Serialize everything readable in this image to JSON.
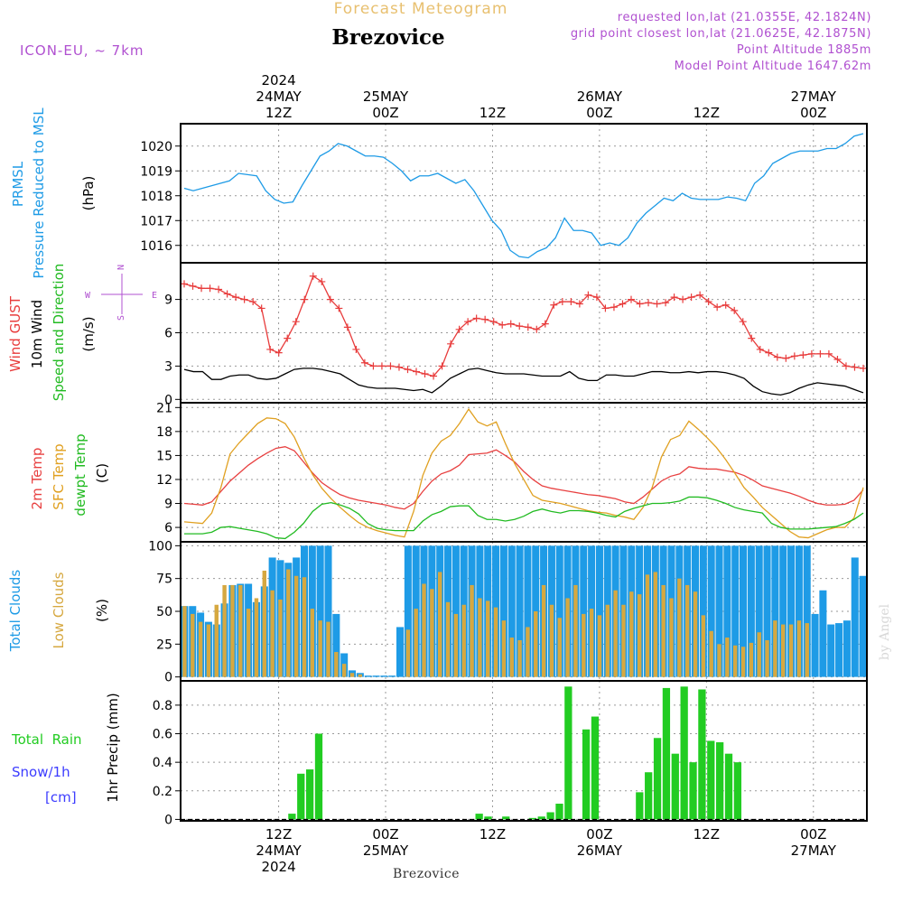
{
  "header": {
    "product": "Forecast Meteogram",
    "station": "Brezovice",
    "model": "ICON-EU, ~ 7km",
    "req_line": "requested lon,lat (21.0355E, 42.1824N)",
    "grid_line": "grid point closest lon,lat (21.0625E, 42.1875N)",
    "alt_line": "Point Altitude 1885m",
    "model_alt_line": "Model Point Altitude 1647.62m",
    "footer_station": "Brezovice",
    "watermark": "by Angel"
  },
  "time_axis": {
    "ticks": [
      {
        "hour": 18,
        "top": [
          "2024",
          "24MAY",
          "12Z"
        ],
        "bottom": [
          "12Z",
          "24MAY",
          "2024"
        ]
      },
      {
        "hour": 30,
        "top": [
          "25MAY",
          "00Z"
        ],
        "bottom": [
          "00Z",
          "25MAY"
        ]
      },
      {
        "hour": 42,
        "top": [
          "12Z"
        ],
        "bottom": [
          "12Z"
        ]
      },
      {
        "hour": 54,
        "top": [
          "26MAY",
          "00Z"
        ],
        "bottom": [
          "00Z",
          "26MAY"
        ]
      },
      {
        "hour": 66,
        "top": [
          "12Z"
        ],
        "bottom": [
          "12Z"
        ]
      },
      {
        "hour": 78,
        "top": [
          "27MAY",
          "00Z"
        ],
        "bottom": [
          "00Z",
          "27MAY"
        ]
      }
    ],
    "x_range_hours": [
      7,
      84
    ],
    "step_hours": 1
  },
  "panel_labels": {
    "pressure": {
      "name": "PRMSL",
      "desc": "Pressure Reduced to MSL",
      "unit": "(hPa)"
    },
    "wind": {
      "gust": "Wind GUST",
      "wind10": "10m Wind",
      "dir": "Speed and Direction",
      "unit": "(m/s)",
      "compass_n": "N",
      "compass_s": "S",
      "compass_w": "W",
      "compass_e": "E"
    },
    "temp": {
      "t2m": "2m Temp",
      "sfc": "SFC Temp",
      "dew": "dewpt Temp",
      "unit": "(C)"
    },
    "clouds": {
      "total": "Total Clouds",
      "low": "Low Clouds",
      "unit": "(%)"
    },
    "precip": {
      "rain": "Total  Rain",
      "snow": "Snow/1h",
      "snow_unit": "[cm]",
      "axis": "1hr Precip (mm)"
    }
  },
  "colors": {
    "pressure": "#1e9be6",
    "gust": "#e83c3c",
    "wind": "#000000",
    "t2m": "#e84040",
    "sfc": "#e0a020",
    "dew": "#22bb22",
    "total_clouds": "#1e9be6",
    "low_clouds": "#d6a840",
    "rain": "#22cc22",
    "snow": "#3c3cff",
    "header_purple": "#b050d0",
    "header_orange": "#e8b040"
  },
  "chart_data": [
    {
      "type": "line",
      "panel": "pressure",
      "ylabel": "(hPa)",
      "ylim": [
        1015.3,
        1020.9
      ],
      "yticks": [
        1016,
        1017,
        1018,
        1019,
        1020
      ],
      "grid": true,
      "series": [
        {
          "name": "PRMSL",
          "values": [
            1018.3,
            1018.2,
            1018.3,
            1018.4,
            1018.5,
            1018.6,
            1018.9,
            1018.85,
            1018.8,
            1018.2,
            1017.85,
            1017.7,
            1017.75,
            1018.4,
            1019.0,
            1019.6,
            1019.8,
            1020.1,
            1020.0,
            1019.8,
            1019.6,
            1019.6,
            1019.55,
            1019.3,
            1019.0,
            1018.6,
            1018.8,
            1018.8,
            1018.9,
            1018.7,
            1018.5,
            1018.65,
            1018.2,
            1017.6,
            1017.0,
            1016.6,
            1015.8,
            1015.55,
            1015.5,
            1015.75,
            1015.9,
            1016.3,
            1017.1,
            1016.6,
            1016.6,
            1016.5,
            1016.0,
            1016.1,
            1016.0,
            1016.3,
            1016.9,
            1017.3,
            1017.6,
            1017.9,
            1017.8,
            1018.1,
            1017.9,
            1017.85,
            1017.85,
            1017.85,
            1017.95,
            1017.9,
            1017.8,
            1018.5,
            1018.8,
            1019.3,
            1019.5,
            1019.7,
            1019.8,
            1019.8,
            1019.8,
            1019.9,
            1019.9,
            1020.1,
            1020.4,
            1020.5
          ]
        }
      ]
    },
    {
      "type": "line",
      "panel": "wind",
      "ylabel": "(m/s)",
      "ylim": [
        -0.3,
        12.3
      ],
      "yticks": [
        0,
        3,
        6,
        9
      ],
      "grid": true,
      "series": [
        {
          "name": "Wind GUST",
          "values": [
            10.4,
            10.2,
            10.0,
            10.0,
            9.9,
            9.5,
            9.2,
            9.0,
            8.8,
            8.2,
            4.5,
            4.2,
            5.5,
            7.0,
            9.0,
            11.1,
            10.6,
            9.0,
            8.2,
            6.5,
            4.5,
            3.3,
            3.0,
            3.0,
            3.0,
            2.9,
            2.7,
            2.5,
            2.3,
            2.1,
            3.0,
            5.0,
            6.3,
            7.0,
            7.3,
            7.2,
            7.0,
            6.7,
            6.8,
            6.6,
            6.5,
            6.3,
            6.8,
            8.5,
            8.8,
            8.8,
            8.6,
            9.4,
            9.2,
            8.2,
            8.3,
            8.6,
            9.0,
            8.6,
            8.7,
            8.6,
            8.7,
            9.2,
            9.0,
            9.2,
            9.4,
            8.8,
            8.3,
            8.5,
            8.0,
            7.0,
            5.5,
            4.5,
            4.2,
            3.8,
            3.7,
            3.9,
            4.0,
            4.1,
            4.1,
            4.1,
            3.6,
            3.0,
            2.9,
            2.8
          ]
        },
        {
          "name": "10m Wind",
          "values": [
            2.7,
            2.5,
            2.5,
            1.8,
            1.8,
            2.1,
            2.2,
            2.2,
            1.9,
            1.8,
            1.9,
            2.3,
            2.7,
            2.8,
            2.8,
            2.7,
            2.5,
            2.3,
            1.8,
            1.3,
            1.1,
            1.0,
            1.0,
            1.0,
            0.9,
            0.8,
            0.9,
            0.6,
            1.2,
            1.9,
            2.3,
            2.7,
            2.8,
            2.6,
            2.4,
            2.3,
            2.3,
            2.3,
            2.2,
            2.1,
            2.1,
            2.1,
            2.5,
            1.9,
            1.7,
            1.7,
            2.2,
            2.2,
            2.1,
            2.1,
            2.3,
            2.5,
            2.5,
            2.4,
            2.4,
            2.5,
            2.4,
            2.5,
            2.5,
            2.4,
            2.2,
            1.9,
            1.2,
            0.7,
            0.5,
            0.4,
            0.6,
            1.0,
            1.3,
            1.5,
            1.4,
            1.3,
            1.2,
            0.9,
            0.6
          ]
        }
      ]
    },
    {
      "type": "line",
      "panel": "temperature",
      "ylabel": "(C)",
      "ylim": [
        4.2,
        21.6
      ],
      "yticks": [
        6,
        9,
        12,
        15,
        18,
        21
      ],
      "grid": true,
      "series": [
        {
          "name": "2m Temp",
          "values": [
            9.0,
            8.9,
            8.8,
            9.2,
            10.5,
            11.8,
            12.8,
            13.8,
            14.6,
            15.3,
            15.9,
            16.1,
            15.6,
            14.2,
            12.8,
            11.6,
            10.8,
            10.1,
            9.7,
            9.4,
            9.2,
            9.0,
            8.8,
            8.5,
            8.3,
            9.0,
            10.5,
            11.8,
            12.7,
            13.1,
            13.8,
            15.1,
            15.2,
            15.3,
            15.7,
            15.0,
            14.2,
            13.0,
            12.0,
            11.2,
            10.9,
            10.7,
            10.5,
            10.3,
            10.1,
            10.0,
            9.8,
            9.6,
            9.2,
            9.0,
            9.8,
            10.8,
            11.8,
            12.4,
            12.7,
            13.6,
            13.4,
            13.3,
            13.3,
            13.1,
            12.9,
            12.5,
            11.9,
            11.2,
            10.9,
            10.6,
            10.3,
            9.9,
            9.4,
            9.0,
            8.8,
            8.8,
            8.9,
            9.4,
            10.7
          ]
        },
        {
          "name": "SFC Temp",
          "values": [
            6.7,
            6.6,
            6.5,
            7.8,
            11.0,
            15.2,
            16.6,
            17.8,
            19.0,
            19.7,
            19.6,
            19.0,
            17.3,
            14.8,
            12.6,
            10.9,
            9.6,
            8.5,
            7.5,
            6.6,
            6.0,
            5.6,
            5.3,
            5.0,
            4.8,
            8.0,
            12.5,
            15.3,
            16.8,
            17.5,
            19.0,
            20.8,
            19.2,
            18.7,
            19.2,
            16.5,
            14.0,
            12.0,
            10.0,
            9.4,
            9.2,
            9.0,
            8.7,
            8.4,
            8.1,
            7.9,
            7.8,
            7.5,
            7.3,
            7.0,
            8.5,
            11.0,
            14.8,
            17.0,
            17.5,
            19.3,
            18.3,
            17.2,
            16.0,
            14.5,
            12.8,
            11.0,
            9.8,
            8.5,
            7.5,
            6.5,
            5.5,
            4.8,
            4.7,
            5.2,
            5.7,
            6.0,
            6.0,
            7.2,
            11.0
          ]
        },
        {
          "name": "dewpt Temp",
          "values": [
            5.2,
            5.2,
            5.2,
            5.4,
            6.0,
            6.1,
            5.9,
            5.7,
            5.5,
            5.2,
            4.7,
            4.6,
            5.4,
            6.5,
            8.0,
            8.9,
            9.1,
            8.8,
            8.4,
            7.7,
            6.5,
            5.9,
            5.7,
            5.6,
            5.6,
            5.6,
            6.8,
            7.6,
            8.0,
            8.6,
            8.7,
            8.7,
            7.5,
            7.0,
            7.0,
            6.8,
            7.0,
            7.4,
            8.0,
            8.3,
            8.0,
            7.8,
            8.1,
            8.1,
            8.0,
            7.8,
            7.5,
            7.3,
            8.0,
            8.4,
            8.7,
            9.0,
            9.0,
            9.1,
            9.3,
            9.8,
            9.8,
            9.7,
            9.4,
            9.0,
            8.5,
            8.2,
            8.0,
            7.8,
            6.5,
            6.0,
            5.8,
            5.8,
            5.8,
            5.9,
            6.0,
            6.1,
            6.5,
            7.0,
            7.8
          ]
        }
      ]
    },
    {
      "type": "bar",
      "panel": "clouds",
      "ylabel": "(%)",
      "ylim": [
        -3,
        103
      ],
      "yticks": [
        0,
        25,
        50,
        75,
        100
      ],
      "grid": true,
      "series": [
        {
          "name": "Total Clouds",
          "values": [
            54,
            54,
            49,
            42,
            40,
            56,
            70,
            71,
            71,
            57,
            69,
            91,
            89,
            87,
            91,
            100,
            100,
            100,
            100,
            48,
            18,
            5,
            3,
            1,
            1,
            1,
            1,
            38,
            100,
            100,
            100,
            100,
            100,
            100,
            100,
            100,
            100,
            100,
            100,
            100,
            100,
            100,
            100,
            100,
            100,
            100,
            100,
            100,
            100,
            100,
            100,
            100,
            100,
            100,
            100,
            100,
            100,
            100,
            100,
            100,
            100,
            100,
            100,
            100,
            100,
            100,
            100,
            100,
            100,
            100,
            100,
            100,
            100,
            100,
            100,
            100,
            100,
            100,
            100,
            48,
            66,
            40,
            41,
            43,
            91,
            77
          ]
        },
        {
          "name": "Low Clouds",
          "values": [
            54,
            48,
            42,
            40,
            55,
            70,
            70,
            70,
            52,
            60,
            81,
            66,
            59,
            82,
            77,
            76,
            52,
            43,
            42,
            19,
            10,
            3,
            2,
            0,
            0,
            0,
            0,
            0,
            36,
            52,
            71,
            67,
            80,
            57,
            48,
            55,
            70,
            60,
            58,
            53,
            43,
            30,
            28,
            38,
            50,
            70,
            55,
            45,
            60,
            70,
            48,
            52,
            47,
            55,
            66,
            55,
            65,
            63,
            78,
            80,
            70,
            60,
            75,
            70,
            65,
            47,
            35,
            25,
            30,
            24,
            23,
            26,
            34,
            28,
            43,
            40,
            40,
            43,
            41
          ]
        }
      ]
    },
    {
      "type": "bar",
      "panel": "precip",
      "ylabel": "1hr Precip (mm)",
      "ylim": [
        -0.01,
        0.97
      ],
      "yticks": [
        0,
        0.2,
        0.4,
        0.6,
        0.8
      ],
      "grid": true,
      "series": [
        {
          "name": "Total Rain",
          "values": [
            0,
            0,
            0,
            0,
            0,
            0,
            0,
            0,
            0,
            0,
            0,
            0,
            0.04,
            0.32,
            0.35,
            0.6,
            0,
            0,
            0,
            0,
            0,
            0,
            0,
            0,
            0,
            0,
            0,
            0,
            0,
            0,
            0,
            0,
            0,
            0.04,
            0.02,
            0,
            0.02,
            0,
            0,
            0.01,
            0.02,
            0.05,
            0.11,
            0.93,
            0,
            0.63,
            0.72,
            0,
            0,
            0,
            0,
            0.19,
            0.33,
            0.57,
            0.92,
            0.46,
            0.93,
            0.4,
            0.91,
            0.55,
            0.54,
            0.46,
            0.4,
            0,
            0,
            0,
            0,
            0,
            0,
            0,
            0,
            0,
            0,
            0,
            0,
            0,
            0
          ]
        },
        {
          "name": "Snow/1h",
          "values": []
        }
      ]
    }
  ]
}
